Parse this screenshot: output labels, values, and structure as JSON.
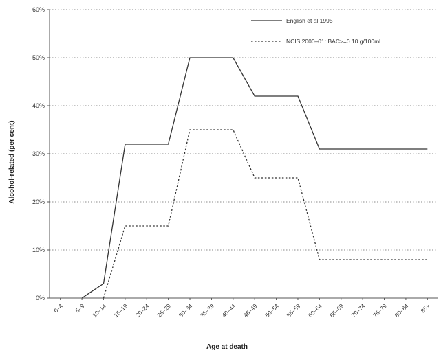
{
  "chart_data": {
    "type": "line",
    "title": "",
    "xlabel": "Age at death",
    "ylabel": "Alcohol-related (per cent)",
    "categories": [
      "0–4",
      "5–9",
      "10–14",
      "15–19",
      "20–24",
      "25–29",
      "30–34",
      "35–39",
      "40–44",
      "45–49",
      "50–54",
      "55–59",
      "60–64",
      "65–69",
      "70–74",
      "75–79",
      "80–84",
      "85+"
    ],
    "ylim": [
      0,
      60
    ],
    "yticks": [
      "0%",
      "10%",
      "20%",
      "30%",
      "40%",
      "50%",
      "60%"
    ],
    "grid": "horizontal dotted",
    "legend_position": "top-right",
    "series": [
      {
        "name": "English et al 1995",
        "style": "solid",
        "color": "#333333",
        "values": [
          null,
          0,
          3,
          32,
          32,
          32,
          50,
          50,
          50,
          42,
          42,
          42,
          31,
          31,
          31,
          31,
          31,
          31
        ]
      },
      {
        "name": "NCIS 2000–01: BAC>=0.10 g/100ml",
        "style": "dotted",
        "color": "#333333",
        "values": [
          null,
          null,
          0,
          15,
          15,
          15,
          35,
          35,
          35,
          25,
          25,
          25,
          8,
          8,
          8,
          8,
          8,
          8
        ]
      }
    ]
  }
}
